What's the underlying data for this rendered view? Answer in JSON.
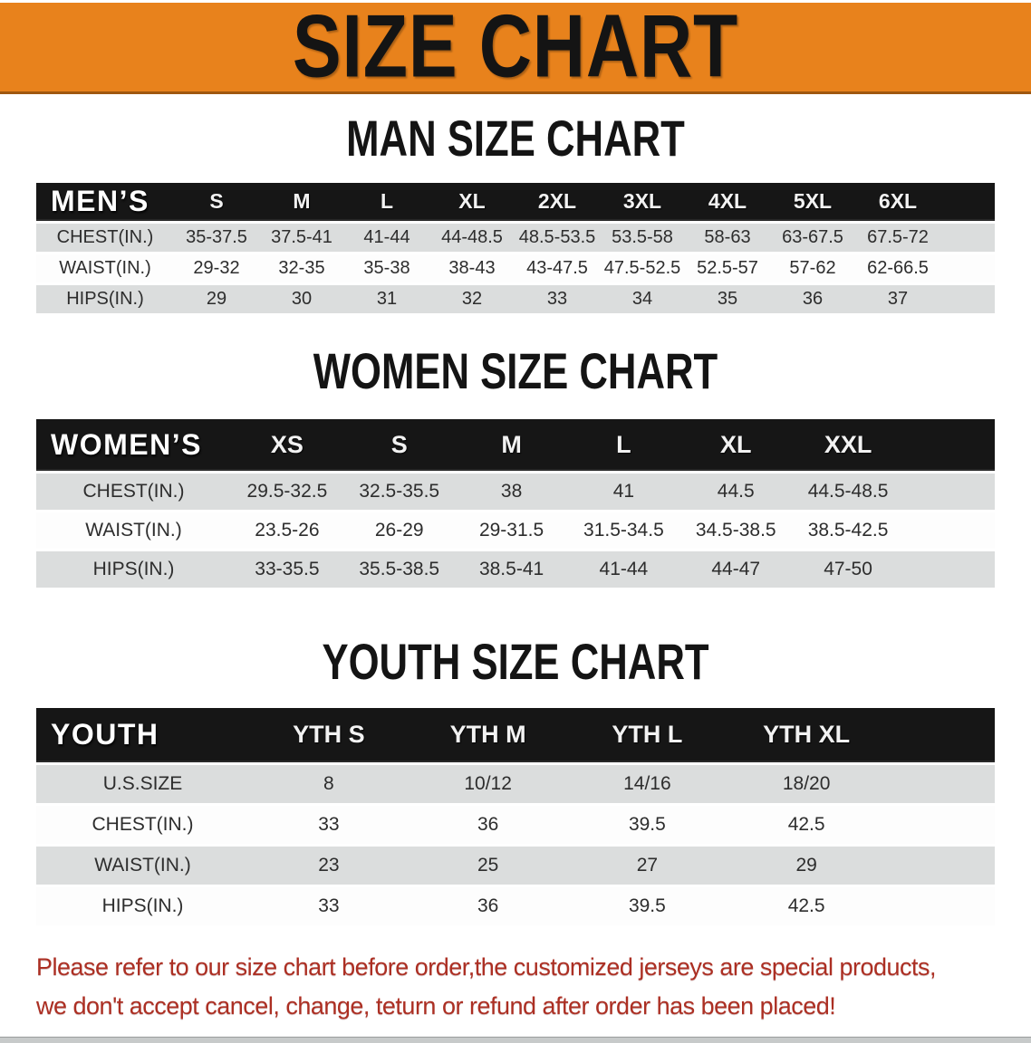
{
  "banner": {
    "title": "SIZE CHART",
    "bg_color": "#E8821C",
    "title_color": "#141414"
  },
  "colors": {
    "table_header_bg": "#161616",
    "row_gray": "#DBDDDD",
    "row_white": "#FDFDFD",
    "disclaimer_red": "#AC2F23"
  },
  "sections": [
    {
      "id": "man",
      "heading": "MAN SIZE CHART",
      "table": {
        "label": "MEN’S",
        "columns": [
          "S",
          "M",
          "L",
          "XL",
          "2XL",
          "3XL",
          "4XL",
          "5XL",
          "6XL"
        ],
        "rows": [
          {
            "label": "CHEST(IN.)",
            "values": [
              "35-37.5",
              "37.5-41",
              "41-44",
              "44-48.5",
              "48.5-53.5",
              "53.5-58",
              "58-63",
              "63-67.5",
              "67.5-72"
            ]
          },
          {
            "label": "WAIST(IN.)",
            "values": [
              "29-32",
              "32-35",
              "35-38",
              "38-43",
              "43-47.5",
              "47.5-52.5",
              "52.5-57",
              "57-62",
              "62-66.5"
            ]
          },
          {
            "label": "HIPS(IN.)",
            "values": [
              "29",
              "30",
              "31",
              "32",
              "33",
              "34",
              "35",
              "36",
              "37"
            ]
          }
        ]
      }
    },
    {
      "id": "women",
      "heading": "WOMEN SIZE CHART",
      "table": {
        "label": "WOMEN’S",
        "columns": [
          "XS",
          "S",
          "M",
          "L",
          "XL",
          "XXL"
        ],
        "rows": [
          {
            "label": "CHEST(IN.)",
            "values": [
              "29.5-32.5",
              "32.5-35.5",
              "38",
              "41",
              "44.5",
              "44.5-48.5"
            ]
          },
          {
            "label": "WAIST(IN.)",
            "values": [
              "23.5-26",
              "26-29",
              "29-31.5",
              "31.5-34.5",
              "34.5-38.5",
              "38.5-42.5"
            ]
          },
          {
            "label": "HIPS(IN.)",
            "values": [
              "33-35.5",
              "35.5-38.5",
              "38.5-41",
              "41-44",
              "44-47",
              "47-50"
            ]
          }
        ]
      }
    },
    {
      "id": "youth",
      "heading": "YOUTH SIZE CHART",
      "table": {
        "label": "YOUTH",
        "columns": [
          "YTH S",
          "YTH M",
          "YTH L",
          "YTH XL"
        ],
        "rows": [
          {
            "label": "U.S.SIZE",
            "values": [
              "8",
              "10/12",
              "14/16",
              "18/20"
            ]
          },
          {
            "label": "CHEST(IN.)",
            "values": [
              "33",
              "36",
              "39.5",
              "42.5"
            ]
          },
          {
            "label": "WAIST(IN.)",
            "values": [
              "23",
              "25",
              "27",
              "29"
            ]
          },
          {
            "label": "HIPS(IN.)",
            "values": [
              "33",
              "36",
              "39.5",
              "42.5"
            ]
          }
        ]
      }
    }
  ],
  "disclaimer": {
    "line1": "Please refer to our size chart before order,the customized jerseys are special products,",
    "line2": "we don't accept cancel, change, teturn or refund after order has been placed!"
  }
}
